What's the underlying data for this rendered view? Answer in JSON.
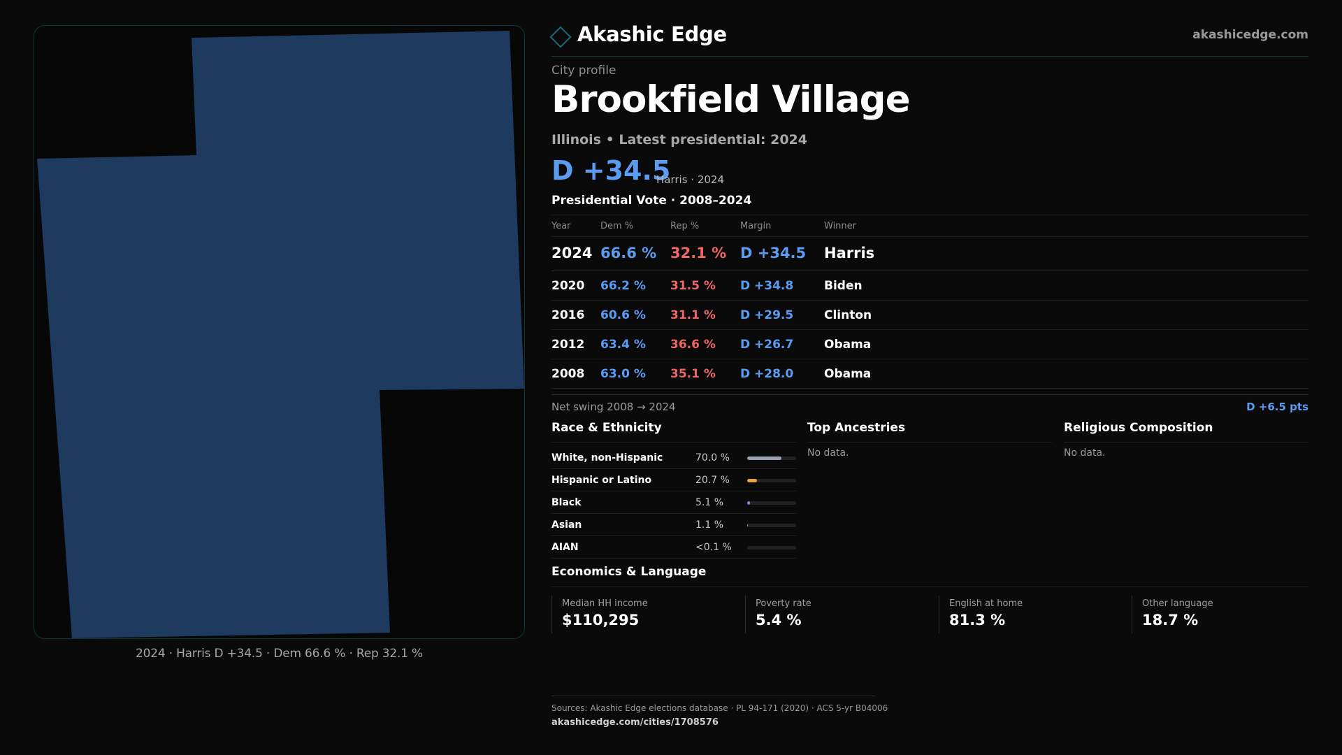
{
  "brand": {
    "name": "Akashic Edge",
    "url": "akashicedge.com"
  },
  "profile": {
    "kicker": "City profile",
    "title": "Brookfield Village",
    "subline": "Illinois • Latest presidential: 2024",
    "margin": "D +34.5",
    "margin_note": "Harris · 2024"
  },
  "map": {
    "caption": "2024 · Harris D +34.5 · Dem 66.6 % · Rep 32.1 %",
    "fill_color": "#1e3a5f"
  },
  "vote_table": {
    "title": "Presidential Vote · 2008–2024",
    "headers": {
      "year": "Year",
      "dem": "Dem %",
      "rep": "Rep %",
      "margin": "Margin",
      "winner": "Winner"
    },
    "rows": [
      {
        "year": "2024",
        "dem": "66.6 %",
        "rep": "32.1 %",
        "margin": "D +34.5",
        "winner": "Harris"
      },
      {
        "year": "2020",
        "dem": "66.2 %",
        "rep": "31.5 %",
        "margin": "D +34.8",
        "winner": "Biden"
      },
      {
        "year": "2016",
        "dem": "60.6 %",
        "rep": "31.1 %",
        "margin": "D +29.5",
        "winner": "Clinton"
      },
      {
        "year": "2012",
        "dem": "63.4 %",
        "rep": "36.6 %",
        "margin": "D +26.7",
        "winner": "Obama"
      },
      {
        "year": "2008",
        "dem": "63.0 %",
        "rep": "35.1 %",
        "margin": "D +28.0",
        "winner": "Obama"
      }
    ]
  },
  "net_swing": {
    "label": "Net swing 2008 → 2024",
    "value": "D +6.5 pts"
  },
  "race": {
    "title": "Race & Ethnicity",
    "rows": [
      {
        "name": "White, non-Hispanic",
        "pct": "70.0 %",
        "share": 0.7,
        "color": "#9aa3ad"
      },
      {
        "name": "Hispanic or Latino",
        "pct": "20.7 %",
        "share": 0.207,
        "color": "#e8a33a"
      },
      {
        "name": "Black",
        "pct": "5.1 %",
        "share": 0.051,
        "color": "#8a7fe6"
      },
      {
        "name": "Asian",
        "pct": "1.1 %",
        "share": 0.011,
        "color": "#3fbfa8"
      },
      {
        "name": "AIAN",
        "pct": "<0.1 %",
        "share": 0.0,
        "color": "#9aa3ad"
      }
    ]
  },
  "ancestries": {
    "title": "Top Ancestries",
    "empty": "No data."
  },
  "religion": {
    "title": "Religious Composition",
    "empty": "No data."
  },
  "economics": {
    "title": "Economics & Language",
    "cards": [
      {
        "label": "Median HH income",
        "value": "$110,295"
      },
      {
        "label": "Poverty rate",
        "value": "5.4 %"
      },
      {
        "label": "English at home",
        "value": "81.3 %"
      },
      {
        "label": "Other language",
        "value": "18.7 %"
      }
    ]
  },
  "footer": {
    "sources": "Sources: Akashic Edge elections database · PL 94-171 (2020) · ACS 5-yr B04006",
    "url": "akashicedge.com/cities/1708576"
  },
  "colors": {
    "dem": "#5b9cf2",
    "rep": "#f06666",
    "accent": "#1a6a72"
  }
}
